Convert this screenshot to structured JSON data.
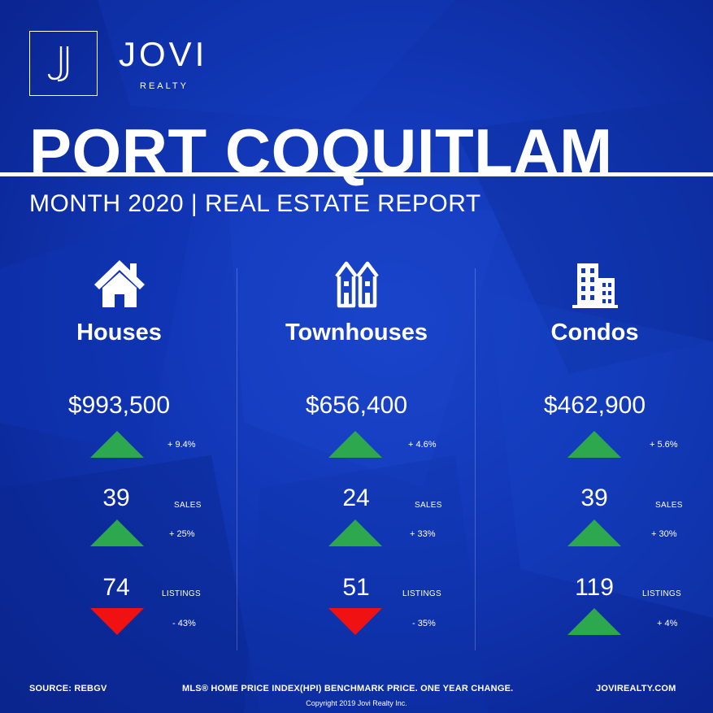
{
  "brand": {
    "name": "JOVI",
    "sub": "REALTY"
  },
  "title": "PORT COQUITLAM",
  "subtitle": "MONTH 2020 | REAL ESTATE REPORT",
  "colors": {
    "background": "#1238b8",
    "up": "#2ea84e",
    "down": "#f01212",
    "text": "#ffffff"
  },
  "columns": [
    {
      "icon": "house-icon",
      "title": "Houses",
      "price": "$993,500",
      "price_change": "+ 9.4%",
      "price_trend": "up",
      "sales": "39",
      "sales_label": "SALES",
      "sales_change": "+ 25%",
      "sales_trend": "up",
      "listings": "74",
      "listings_label": "LISTINGS",
      "listings_change": "- 43%",
      "listings_trend": "down"
    },
    {
      "icon": "townhouse-icon",
      "title": "Townhouses",
      "price": "$656,400",
      "price_change": "+ 4.6%",
      "price_trend": "up",
      "sales": "24",
      "sales_label": "SALES",
      "sales_change": "+ 33%",
      "sales_trend": "up",
      "listings": "51",
      "listings_label": "LISTINGS",
      "listings_change": "- 35%",
      "listings_trend": "down"
    },
    {
      "icon": "condo-building-icon",
      "title": "Condos",
      "price": "$462,900",
      "price_change": "+ 5.6%",
      "price_trend": "up",
      "sales": "39",
      "sales_label": "SALES",
      "sales_change": "+ 30%",
      "sales_trend": "up",
      "listings": "119",
      "listings_label": "LISTINGS",
      "listings_change": "+ 4%",
      "listings_trend": "up"
    }
  ],
  "footer": {
    "source": "SOURCE:  REBGV",
    "note": "MLS® HOME PRICE INDEX(HPI) BENCHMARK PRICE. ONE YEAR CHANGE.",
    "website": "JOVIREALTY.COM",
    "copyright": "Copyright 2019 Jovi Realty Inc."
  }
}
